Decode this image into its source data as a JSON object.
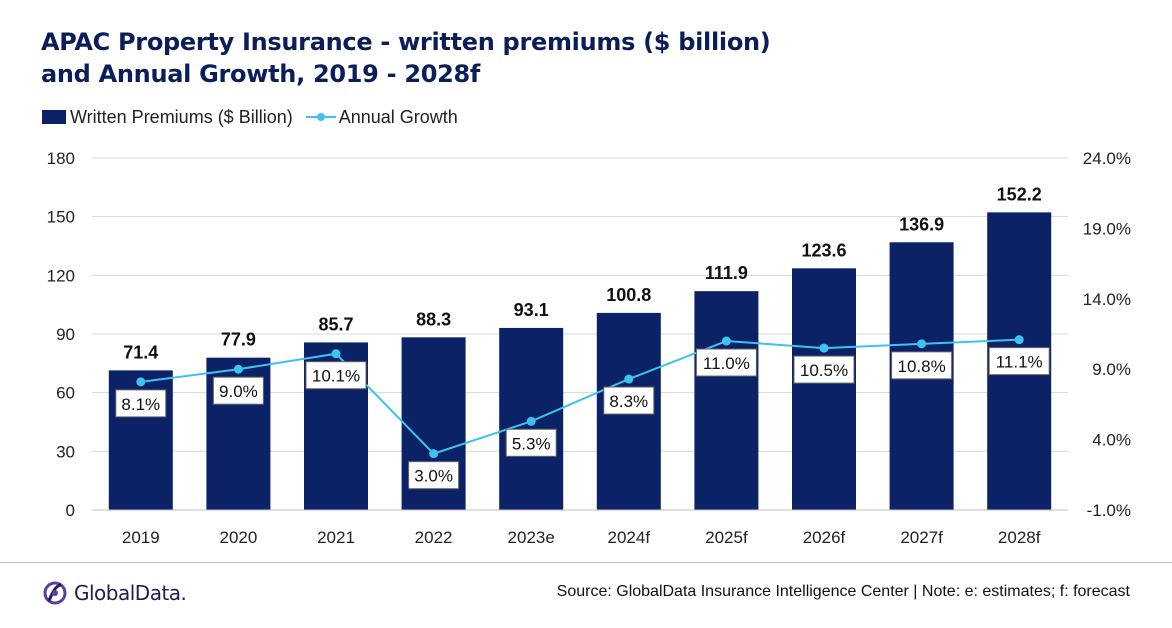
{
  "title_line1": "APAC Property Insurance - written premiums ($ billion)",
  "title_line2": "and Annual Growth, 2019 - 2028f",
  "legend": {
    "bar_label": "Written Premiums ($ Billion)",
    "line_label": "Annual Growth"
  },
  "colors": {
    "bar": "#0b2266",
    "line": "#3cc3f0",
    "title": "#0b1e5a"
  },
  "footer": {
    "logo_text": "GlobalData.",
    "source": "Source: GlobalData Insurance Intelligence Center | Note: e: estimates; f: forecast"
  },
  "chart_data": {
    "type": "bar+line",
    "categories": [
      "2019",
      "2020",
      "2021",
      "2022",
      "2023e",
      "2024f",
      "2025f",
      "2026f",
      "2027f",
      "2028f"
    ],
    "series": [
      {
        "name": "Written Premiums ($ Billion)",
        "type": "bar",
        "axis": "left",
        "values": [
          71.4,
          77.9,
          85.7,
          88.3,
          93.1,
          100.8,
          111.9,
          123.6,
          136.9,
          152.2
        ],
        "labels": [
          "71.4",
          "77.9",
          "85.7",
          "88.3",
          "93.1",
          "100.8",
          "111.9",
          "123.6",
          "136.9",
          "152.2"
        ]
      },
      {
        "name": "Annual Growth",
        "type": "line",
        "axis": "right",
        "values": [
          8.1,
          9.0,
          10.1,
          3.0,
          5.3,
          8.3,
          11.0,
          10.5,
          10.8,
          11.1
        ],
        "labels": [
          "8.1%",
          "9.0%",
          "10.1%",
          "3.0%",
          "5.3%",
          "8.3%",
          "11.0%",
          "10.5%",
          "10.8%",
          "11.1%"
        ]
      }
    ],
    "left_axis": {
      "ylim": [
        0,
        180
      ],
      "ticks": [
        "0",
        "30",
        "60",
        "90",
        "120",
        "150",
        "180"
      ]
    },
    "right_axis": {
      "ylim": [
        -1.0,
        24.0
      ],
      "ticks": [
        "-1.0%",
        "4.0%",
        "9.0%",
        "14.0%",
        "19.0%",
        "24.0%"
      ]
    },
    "grid": true,
    "legend_position": "top-left"
  }
}
